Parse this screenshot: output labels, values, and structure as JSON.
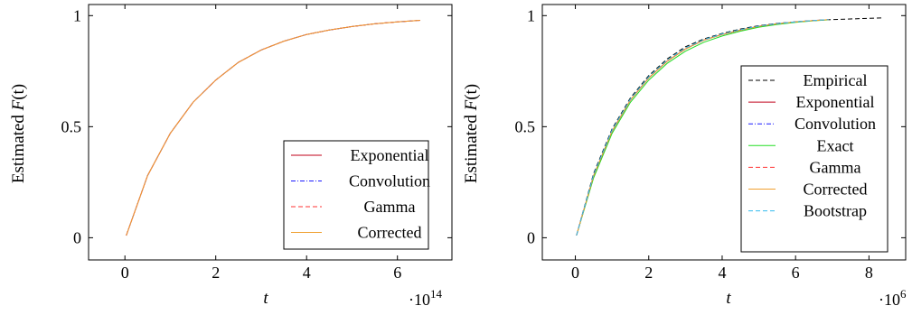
{
  "chart_data": [
    {
      "type": "line",
      "ylabel_prefix": "Estimated ",
      "ylabel_func": "F",
      "ylabel_arg": "(t)",
      "xlabel": "t",
      "x_multiplier_base": "·10",
      "x_multiplier_exp": "14",
      "xlim": [
        -0.8,
        7.2
      ],
      "ylim": [
        -0.1,
        1.05
      ],
      "xticks": [
        0,
        2,
        4,
        6
      ],
      "xtick_labels": [
        "0",
        "2",
        "4",
        "6"
      ],
      "yticks": [
        0,
        0.5,
        1
      ],
      "ytick_labels": [
        "0",
        "0.5",
        "1"
      ],
      "legend_position": "bottom-right",
      "grid": false,
      "x": [
        0.03,
        0.5,
        1.0,
        1.5,
        2.0,
        2.5,
        3.0,
        3.5,
        4.0,
        4.5,
        5.0,
        5.5,
        6.0,
        6.5
      ],
      "series": [
        {
          "name": "Exponential",
          "color": "#c0001a",
          "dash": "none",
          "y": [
            0.01,
            0.28,
            0.47,
            0.61,
            0.71,
            0.79,
            0.845,
            0.885,
            0.915,
            0.935,
            0.951,
            0.963,
            0.972,
            0.979
          ]
        },
        {
          "name": "Convolution",
          "color": "#1a1aff",
          "dash": "dashdot",
          "y": [
            0.01,
            0.28,
            0.47,
            0.61,
            0.71,
            0.79,
            0.845,
            0.885,
            0.915,
            0.935,
            0.951,
            0.963,
            0.972,
            0.979
          ]
        },
        {
          "name": "Gamma",
          "color": "#ff3333",
          "dash": "dashed",
          "y": [
            0.01,
            0.28,
            0.47,
            0.61,
            0.71,
            0.79,
            0.845,
            0.885,
            0.915,
            0.935,
            0.951,
            0.963,
            0.972,
            0.979
          ]
        },
        {
          "name": "Corrected",
          "color": "#f0a030",
          "dash": "none",
          "y": [
            0.01,
            0.28,
            0.47,
            0.61,
            0.71,
            0.79,
            0.845,
            0.885,
            0.915,
            0.935,
            0.951,
            0.963,
            0.972,
            0.979
          ]
        }
      ]
    },
    {
      "type": "line",
      "ylabel_prefix": "Estimated ",
      "ylabel_func": "F",
      "ylabel_arg": "(t)",
      "xlabel": "t",
      "x_multiplier_base": "·10",
      "x_multiplier_exp": "6",
      "xlim": [
        -0.9,
        9.0
      ],
      "ylim": [
        -0.1,
        1.05
      ],
      "xticks": [
        0,
        2,
        4,
        6,
        8
      ],
      "xtick_labels": [
        "0",
        "2",
        "4",
        "6",
        "8"
      ],
      "yticks": [
        0,
        0.5,
        1
      ],
      "ytick_labels": [
        "0",
        "0.5",
        "1"
      ],
      "legend_position": "right",
      "grid": false,
      "series": [
        {
          "name": "Empirical",
          "color": "#000000",
          "dash": "dashed",
          "x": [
            0.03,
            0.5,
            1.0,
            1.5,
            2.0,
            2.5,
            3.0,
            3.5,
            4.0,
            4.5,
            5.0,
            5.5,
            6.0,
            6.5,
            7.0,
            7.5,
            8.0,
            8.4
          ],
          "y": [
            0.01,
            0.29,
            0.49,
            0.63,
            0.73,
            0.805,
            0.86,
            0.895,
            0.92,
            0.94,
            0.955,
            0.965,
            0.972,
            0.978,
            0.982,
            0.985,
            0.988,
            0.99
          ]
        },
        {
          "name": "Exponential",
          "color": "#c0001a",
          "dash": "none",
          "x": [
            0.03,
            0.5,
            1.0,
            1.5,
            2.0,
            2.5,
            3.0,
            3.5,
            4.0,
            4.5,
            5.0,
            5.5,
            6.0,
            6.5,
            6.9
          ],
          "y": [
            0.01,
            0.28,
            0.48,
            0.62,
            0.72,
            0.795,
            0.85,
            0.89,
            0.915,
            0.935,
            0.952,
            0.963,
            0.972,
            0.978,
            0.982
          ]
        },
        {
          "name": "Convolution",
          "color": "#1a1aff",
          "dash": "dashdot",
          "x": [
            0.03,
            0.5,
            1.0,
            1.5,
            2.0,
            2.5,
            3.0,
            3.5,
            4.0,
            4.5,
            5.0,
            5.5,
            6.0,
            6.5,
            6.9
          ],
          "y": [
            0.01,
            0.28,
            0.48,
            0.62,
            0.72,
            0.795,
            0.85,
            0.89,
            0.915,
            0.935,
            0.952,
            0.963,
            0.972,
            0.978,
            0.982
          ]
        },
        {
          "name": "Exact",
          "color": "#22dd22",
          "dash": "none",
          "x": [
            0.03,
            0.5,
            1.0,
            1.5,
            2.0,
            2.5,
            3.0,
            3.5,
            4.0,
            4.5,
            5.0,
            5.5,
            6.0,
            6.5,
            6.9
          ],
          "y": [
            0.01,
            0.27,
            0.47,
            0.61,
            0.71,
            0.785,
            0.84,
            0.88,
            0.908,
            0.93,
            0.948,
            0.96,
            0.97,
            0.977,
            0.981
          ]
        },
        {
          "name": "Gamma",
          "color": "#ff3333",
          "dash": "dashed",
          "x": [
            0.03,
            0.5,
            1.0,
            1.5,
            2.0,
            2.5,
            3.0,
            3.5,
            4.0,
            4.5,
            5.0,
            5.5,
            6.0,
            6.5,
            6.9
          ],
          "y": [
            0.01,
            0.28,
            0.48,
            0.62,
            0.72,
            0.795,
            0.85,
            0.89,
            0.915,
            0.935,
            0.952,
            0.963,
            0.972,
            0.978,
            0.982
          ]
        },
        {
          "name": "Corrected",
          "color": "#f0a030",
          "dash": "none",
          "x": [
            0.03,
            0.5,
            1.0,
            1.5,
            2.0,
            2.5,
            3.0,
            3.5,
            4.0,
            4.5,
            5.0,
            5.5,
            6.0,
            6.5,
            6.9
          ],
          "y": [
            0.01,
            0.28,
            0.48,
            0.62,
            0.72,
            0.795,
            0.85,
            0.89,
            0.915,
            0.935,
            0.952,
            0.963,
            0.972,
            0.978,
            0.982
          ]
        },
        {
          "name": "Bootstrap",
          "color": "#33bbee",
          "dash": "dashed",
          "x": [
            0.03,
            0.5,
            1.0,
            1.5,
            2.0,
            2.5,
            3.0,
            3.5,
            4.0,
            4.5,
            5.0,
            5.5,
            6.0,
            6.5,
            6.9
          ],
          "y": [
            0.01,
            0.285,
            0.485,
            0.625,
            0.725,
            0.8,
            0.855,
            0.892,
            0.918,
            0.937,
            0.953,
            0.964,
            0.972,
            0.978,
            0.982
          ]
        }
      ]
    }
  ]
}
